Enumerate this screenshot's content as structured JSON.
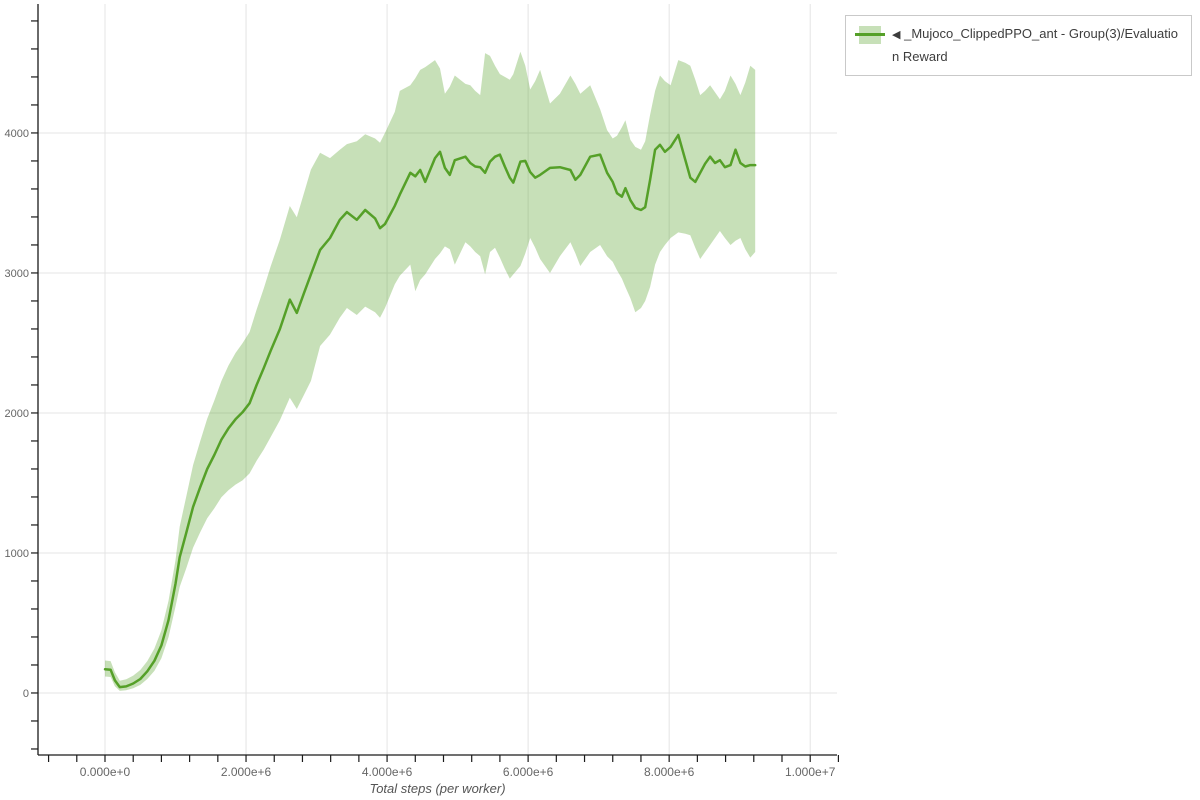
{
  "colors": {
    "line": "#55a028",
    "band": "rgba(85,160,40,0.33)",
    "grid": "#e4e4e4",
    "axis": "#1a1a1a",
    "tick_label": "#666666",
    "axis_title": "#555555",
    "legend_border": "#c9c9c9",
    "background": "#ffffff"
  },
  "legend": {
    "entries": [
      {
        "arrow": "◀",
        "label": "_Mujoco_ClippedPPO_ant - Group(3)/Evaluation Reward",
        "line_color": "#55a028",
        "band_color": "rgba(85,160,40,0.33)"
      }
    ]
  },
  "chart_data": {
    "type": "line",
    "title": "",
    "xlabel": "Total steps (per worker)",
    "ylabel": "",
    "grid": true,
    "legend_position": "top-right",
    "x_axis": {
      "range": [
        -950000,
        10380000
      ],
      "minor_tick_step": 400000,
      "minor_tick_start": -800000,
      "minor_tick_end": 10400000,
      "major_ticks": [
        {
          "value": 0,
          "label": "0.000e+0"
        },
        {
          "value": 2000000,
          "label": "2.000e+6"
        },
        {
          "value": 4000000,
          "label": "4.000e+6"
        },
        {
          "value": 6000000,
          "label": "6.000e+6"
        },
        {
          "value": 8000000,
          "label": "8.000e+6"
        },
        {
          "value": 10000000,
          "label": "1.000e+7"
        }
      ]
    },
    "y_axis": {
      "range": [
        -443,
        4921
      ],
      "minor_tick_step": 200,
      "minor_tick_start": -400,
      "minor_tick_end": 4800,
      "major_ticks": [
        {
          "value": 0,
          "label": "0"
        },
        {
          "value": 1000,
          "label": "1000"
        },
        {
          "value": 2000,
          "label": "2000"
        },
        {
          "value": 3000,
          "label": "3000"
        },
        {
          "value": 4000,
          "label": "4000"
        }
      ]
    },
    "series": [
      {
        "name": "_Mujoco_ClippedPPO_ant - Group(3)/Evaluation Reward",
        "color": "#55a028",
        "band_color": "rgba(85,160,40,0.33)",
        "x_steps": [
          0,
          80000,
          140000,
          210000,
          300000,
          400000,
          500000,
          600000,
          700000,
          800000,
          900000,
          1000000,
          1060000,
          1150000,
          1250000,
          1350000,
          1450000,
          1550000,
          1650000,
          1750000,
          1850000,
          1950000,
          2050000,
          2150000,
          2250000,
          2350000,
          2480000,
          2620000,
          2720000,
          2820000,
          2920000,
          3050000,
          3190000,
          3330000,
          3430000,
          3570000,
          3690000,
          3830000,
          3900000,
          3970000,
          4110000,
          4180000,
          4330000,
          4400000,
          4470000,
          4540000,
          4680000,
          4750000,
          4820000,
          4890000,
          4960000,
          5110000,
          5180000,
          5250000,
          5320000,
          5390000,
          5460000,
          5530000,
          5600000,
          5670000,
          5740000,
          5790000,
          5890000,
          5960000,
          6030000,
          6100000,
          6170000,
          6310000,
          6450000,
          6600000,
          6670000,
          6740000,
          6880000,
          7020000,
          7120000,
          7200000,
          7260000,
          7330000,
          7380000,
          7450000,
          7520000,
          7600000,
          7660000,
          7730000,
          7800000,
          7870000,
          7940000,
          8020000,
          8130000,
          8230000,
          8300000,
          8370000,
          8440000,
          8510000,
          8580000,
          8650000,
          8720000,
          8790000,
          8870000,
          8940000,
          9010000,
          9080000,
          9150000,
          9220000
        ],
        "mean": [
          170,
          166,
          90,
          42,
          47,
          68,
          100,
          155,
          230,
          340,
          520,
          780,
          970,
          1140,
          1330,
          1470,
          1600,
          1700,
          1810,
          1890,
          1955,
          2005,
          2070,
          2200,
          2320,
          2445,
          2600,
          2810,
          2715,
          2855,
          2990,
          3165,
          3250,
          3380,
          3435,
          3380,
          3450,
          3390,
          3320,
          3350,
          3480,
          3560,
          3715,
          3690,
          3735,
          3650,
          3820,
          3865,
          3750,
          3700,
          3805,
          3830,
          3785,
          3760,
          3755,
          3715,
          3795,
          3830,
          3845,
          3760,
          3680,
          3645,
          3795,
          3800,
          3720,
          3680,
          3700,
          3750,
          3755,
          3735,
          3665,
          3700,
          3830,
          3845,
          3715,
          3650,
          3570,
          3545,
          3605,
          3520,
          3465,
          3450,
          3470,
          3665,
          3880,
          3915,
          3865,
          3900,
          3985,
          3805,
          3680,
          3650,
          3715,
          3780,
          3830,
          3785,
          3805,
          3755,
          3770,
          3880,
          3785,
          3760,
          3770,
          3770
        ],
        "band_low": [
          118,
          114,
          48,
          15,
          20,
          34,
          58,
          100,
          158,
          248,
          398,
          618,
          758,
          888,
          1038,
          1148,
          1248,
          1318,
          1398,
          1448,
          1488,
          1518,
          1568,
          1658,
          1738,
          1828,
          1948,
          2108,
          2028,
          2128,
          2228,
          2478,
          2560,
          2680,
          2750,
          2700,
          2760,
          2720,
          2680,
          2750,
          2920,
          2980,
          3060,
          2870,
          2950,
          2990,
          3100,
          3140,
          3190,
          3170,
          3060,
          3220,
          3190,
          3150,
          3120,
          2990,
          3150,
          3180,
          3110,
          3030,
          2960,
          2990,
          3050,
          3140,
          3250,
          3180,
          3100,
          3000,
          3120,
          3220,
          3140,
          3050,
          3150,
          3200,
          3120,
          3080,
          3020,
          2960,
          2900,
          2820,
          2720,
          2750,
          2800,
          2900,
          3060,
          3150,
          3200,
          3250,
          3290,
          3280,
          3270,
          3180,
          3100,
          3150,
          3200,
          3250,
          3300,
          3250,
          3200,
          3230,
          3250,
          3170,
          3110,
          3150
        ],
        "band_high": [
          232,
          228,
          148,
          88,
          98,
          124,
          164,
          228,
          318,
          448,
          658,
          948,
          1188,
          1398,
          1628,
          1798,
          1958,
          2088,
          2228,
          2338,
          2428,
          2498,
          2578,
          2738,
          2888,
          3048,
          3238,
          3478,
          3398,
          3568,
          3738,
          3858,
          3820,
          3880,
          3920,
          3940,
          3990,
          3960,
          3930,
          4000,
          4150,
          4300,
          4340,
          4390,
          4450,
          4470,
          4520,
          4460,
          4280,
          4330,
          4410,
          4350,
          4340,
          4300,
          4270,
          4570,
          4550,
          4480,
          4420,
          4400,
          4380,
          4420,
          4580,
          4480,
          4310,
          4370,
          4450,
          4210,
          4280,
          4410,
          4350,
          4280,
          4340,
          4170,
          4020,
          3960,
          3980,
          4040,
          4090,
          3950,
          3900,
          3880,
          3940,
          4130,
          4300,
          4410,
          4370,
          4340,
          4520,
          4500,
          4480,
          4380,
          4270,
          4300,
          4340,
          4290,
          4240,
          4300,
          4410,
          4350,
          4270,
          4360,
          4480,
          4450
        ]
      }
    ]
  }
}
